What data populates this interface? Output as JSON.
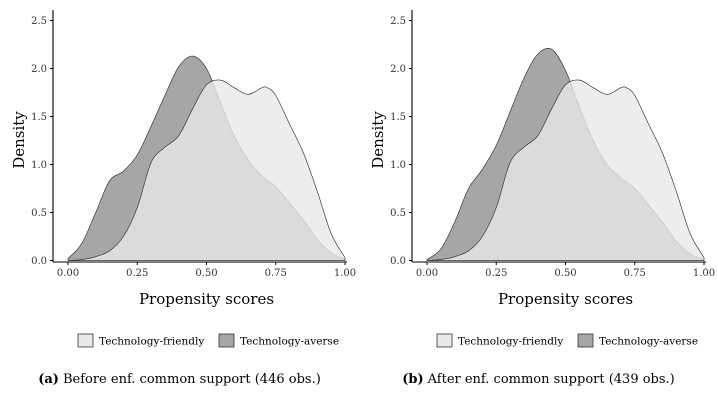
{
  "chart_data": [
    {
      "type": "area",
      "tag": "(a)",
      "caption": "Before enf. common support (446 obs.)",
      "xlabel": "Propensity scores",
      "ylabel": "Density",
      "xlim": [
        0,
        1
      ],
      "ylim": [
        0,
        2.5
      ],
      "xticks": [
        "0.00",
        "0.25",
        "0.50",
        "0.75",
        "1.00"
      ],
      "yticks": [
        "0.0",
        "0.5",
        "1.0",
        "1.5",
        "2.0",
        "2.5"
      ],
      "grid": false,
      "legend_position": "bottom",
      "series": [
        {
          "name": "Technology-friendly",
          "color": "#e8e8e8",
          "x": [
            0.0,
            0.05,
            0.1,
            0.15,
            0.2,
            0.25,
            0.3,
            0.35,
            0.4,
            0.45,
            0.5,
            0.55,
            0.6,
            0.65,
            0.7,
            0.72,
            0.75,
            0.8,
            0.85,
            0.9,
            0.95,
            1.0
          ],
          "y": [
            0.0,
            0.01,
            0.04,
            0.1,
            0.25,
            0.55,
            1.02,
            1.18,
            1.3,
            1.58,
            1.83,
            1.88,
            1.8,
            1.73,
            1.8,
            1.8,
            1.72,
            1.42,
            1.12,
            0.72,
            0.28,
            0.03
          ]
        },
        {
          "name": "Technology-averse",
          "color": "#a6a6a6",
          "x": [
            0.0,
            0.05,
            0.1,
            0.15,
            0.2,
            0.25,
            0.3,
            0.35,
            0.4,
            0.45,
            0.5,
            0.55,
            0.6,
            0.65,
            0.7,
            0.75,
            0.8,
            0.85,
            0.9,
            0.95,
            1.0
          ],
          "y": [
            0.02,
            0.18,
            0.5,
            0.83,
            0.93,
            1.1,
            1.4,
            1.72,
            2.02,
            2.13,
            2.0,
            1.65,
            1.3,
            1.05,
            0.88,
            0.77,
            0.6,
            0.42,
            0.22,
            0.08,
            0.01
          ]
        }
      ]
    },
    {
      "type": "area",
      "tag": "(b)",
      "caption": "After enf. common support (439 obs.)",
      "xlabel": "Propensity scores",
      "ylabel": "Density",
      "xlim": [
        0,
        1
      ],
      "ylim": [
        0,
        2.5
      ],
      "xticks": [
        "0.00",
        "0.25",
        "0.50",
        "0.75",
        "1.00"
      ],
      "yticks": [
        "0.0",
        "0.5",
        "1.0",
        "1.5",
        "2.0",
        "2.5"
      ],
      "grid": false,
      "legend_position": "bottom",
      "series": [
        {
          "name": "Technology-friendly",
          "color": "#e8e8e8",
          "x": [
            0.0,
            0.05,
            0.1,
            0.15,
            0.2,
            0.25,
            0.3,
            0.35,
            0.4,
            0.45,
            0.5,
            0.55,
            0.6,
            0.65,
            0.7,
            0.72,
            0.75,
            0.8,
            0.85,
            0.9,
            0.95,
            1.0
          ],
          "y": [
            0.0,
            0.01,
            0.04,
            0.1,
            0.25,
            0.55,
            1.02,
            1.18,
            1.3,
            1.58,
            1.83,
            1.88,
            1.8,
            1.73,
            1.8,
            1.8,
            1.72,
            1.42,
            1.12,
            0.72,
            0.28,
            0.03
          ]
        },
        {
          "name": "Technology-averse",
          "color": "#a6a6a6",
          "x": [
            0.0,
            0.05,
            0.1,
            0.15,
            0.2,
            0.25,
            0.3,
            0.35,
            0.4,
            0.45,
            0.5,
            0.55,
            0.6,
            0.65,
            0.7,
            0.75,
            0.8,
            0.85,
            0.9,
            0.95,
            1.0
          ],
          "y": [
            0.01,
            0.12,
            0.4,
            0.75,
            0.95,
            1.2,
            1.55,
            1.9,
            2.15,
            2.2,
            1.98,
            1.6,
            1.25,
            1.0,
            0.86,
            0.75,
            0.58,
            0.4,
            0.2,
            0.07,
            0.01
          ]
        }
      ]
    }
  ]
}
